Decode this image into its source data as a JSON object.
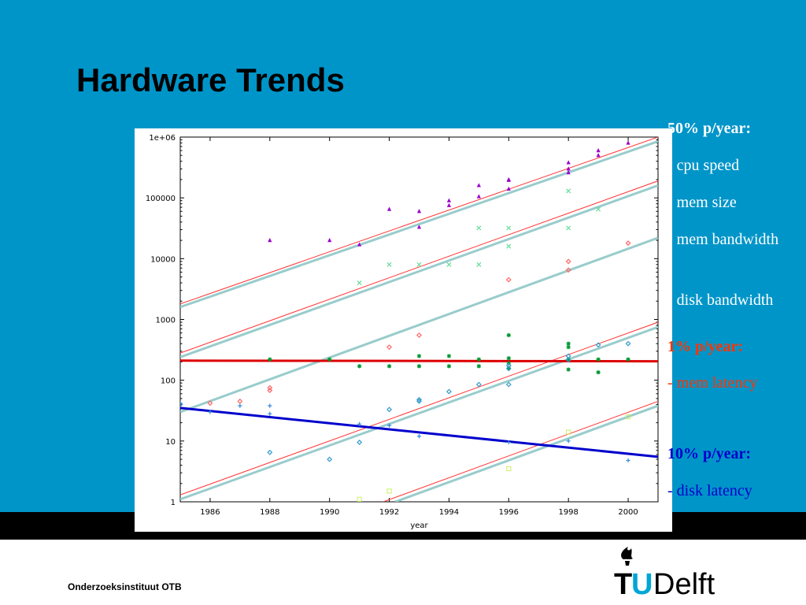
{
  "slide": {
    "title": "Hardware Trends",
    "organization": "Onderzoeksinstituut OTB",
    "logo_text": "TUDelft",
    "colors": {
      "background": "#0095c9",
      "band": "#000000",
      "footer": "#ffffff"
    }
  },
  "notes": [
    {
      "text": "50% p/year:",
      "bold": true,
      "color": "#ffffff",
      "top": 0
    },
    {
      "text": "- cpu speed",
      "bold": false,
      "color": "#ffffff",
      "top": 47
    },
    {
      "text": "- mem size",
      "bold": false,
      "color": "#ffffff",
      "top": 94
    },
    {
      "text": "- mem bandwidth",
      "bold": false,
      "color": "#ffffff",
      "top": 141
    },
    {
      "text": "- disk bandwidth",
      "bold": false,
      "color": "#ffffff",
      "top": 218
    },
    {
      "text": "1% p/year:",
      "bold": true,
      "color": "#ff3300",
      "top": 277
    },
    {
      "text": "- mem latency",
      "bold": false,
      "color": "#ff3300",
      "top": 323
    },
    {
      "text": "10% p/year:",
      "bold": true,
      "color": "#0000cc",
      "top": 413
    },
    {
      "text": "- disk latency",
      "bold": false,
      "color": "#0000cc",
      "top": 460
    }
  ],
  "chart_data": {
    "type": "scatter",
    "xlabel": "year",
    "ylabel": "",
    "xlim": [
      1985,
      2001
    ],
    "ylim": [
      1,
      1000000
    ],
    "yscale": "log",
    "x_ticks": [
      1986,
      1988,
      1990,
      1992,
      1994,
      1996,
      1998,
      2000
    ],
    "y_ticks": [
      {
        "value": 1,
        "label": "1"
      },
      {
        "value": 10,
        "label": "10"
      },
      {
        "value": 100,
        "label": "100"
      },
      {
        "value": 1000,
        "label": "1000"
      },
      {
        "value": 10000,
        "label": "10000"
      },
      {
        "value": 100000,
        "label": "100000"
      },
      {
        "value": 1000000,
        "label": "1e+06"
      }
    ],
    "series": [
      {
        "marker": "triangle",
        "color": "#9900cc",
        "points": [
          [
            1988,
            20000
          ],
          [
            1990,
            20000
          ],
          [
            1991,
            17000
          ],
          [
            1992,
            65000
          ],
          [
            1993,
            60000
          ],
          [
            1993,
            33000
          ],
          [
            1994,
            90000
          ],
          [
            1994,
            75000
          ],
          [
            1995,
            160000
          ],
          [
            1995,
            105000
          ],
          [
            1996,
            200000
          ],
          [
            1996,
            195000
          ],
          [
            1996,
            140000
          ],
          [
            1998,
            380000
          ],
          [
            1998,
            300000
          ],
          [
            1998,
            260000
          ],
          [
            1999,
            600000
          ],
          [
            1999,
            500000
          ],
          [
            2000,
            800000
          ]
        ]
      },
      {
        "marker": "x",
        "color": "#66dd99",
        "points": [
          [
            1991,
            4000
          ],
          [
            1992,
            8000
          ],
          [
            1993,
            8000
          ],
          [
            1994,
            8000
          ],
          [
            1995,
            32000
          ],
          [
            1995,
            8000
          ],
          [
            1996,
            32000
          ],
          [
            1996,
            16000
          ],
          [
            1998,
            130000
          ],
          [
            1998,
            32000
          ],
          [
            1999,
            65000
          ]
        ]
      },
      {
        "marker": "diamond",
        "color": "#ff6666",
        "points": [
          [
            1985,
            40
          ],
          [
            1986,
            42
          ],
          [
            1987,
            45
          ],
          [
            1988,
            75
          ],
          [
            1988,
            68
          ],
          [
            1992,
            350
          ],
          [
            1993,
            550
          ],
          [
            1996,
            4500
          ],
          [
            1998,
            9000
          ],
          [
            1998,
            6500
          ],
          [
            2000,
            18000
          ]
        ]
      },
      {
        "marker": "star",
        "color": "#009933",
        "points": [
          [
            1988,
            220
          ],
          [
            1990,
            220
          ],
          [
            1991,
            170
          ],
          [
            1992,
            170
          ],
          [
            1993,
            250
          ],
          [
            1993,
            170
          ],
          [
            1994,
            250
          ],
          [
            1994,
            170
          ],
          [
            1995,
            220
          ],
          [
            1995,
            170
          ],
          [
            1996,
            550
          ],
          [
            1996,
            230
          ],
          [
            1996,
            190
          ],
          [
            1996,
            160
          ],
          [
            1998,
            400
          ],
          [
            1998,
            350
          ],
          [
            1998,
            220
          ],
          [
            1998,
            150
          ],
          [
            1999,
            220
          ],
          [
            1999,
            135
          ],
          [
            2000,
            220
          ]
        ]
      },
      {
        "marker": "diamond-small",
        "color": "#3399cc",
        "points": [
          [
            1985,
            40
          ],
          [
            1988,
            6.5
          ],
          [
            1990,
            5
          ],
          [
            1991,
            9.5
          ],
          [
            1992,
            33
          ],
          [
            1993,
            48
          ],
          [
            1993,
            45
          ],
          [
            1994,
            65
          ],
          [
            1995,
            85
          ],
          [
            1996,
            85
          ],
          [
            1996,
            175
          ],
          [
            1996,
            155
          ],
          [
            1998,
            250
          ],
          [
            1998,
            215
          ],
          [
            1999,
            380
          ],
          [
            2000,
            400
          ]
        ]
      },
      {
        "marker": "plus",
        "color": "#3388dd",
        "points": [
          [
            1985,
            42
          ],
          [
            1986,
            30
          ],
          [
            1987,
            38
          ],
          [
            1988,
            38
          ],
          [
            1988,
            28
          ],
          [
            1991,
            19
          ],
          [
            1992,
            18
          ],
          [
            1993,
            12
          ],
          [
            1996,
            9.5
          ],
          [
            1998,
            10
          ],
          [
            2000,
            4.8
          ]
        ]
      },
      {
        "marker": "square",
        "color": "#ccee66",
        "points": [
          [
            1991,
            1.1
          ],
          [
            1992,
            1.5
          ],
          [
            1996,
            3.5
          ],
          [
            1998,
            14
          ],
          [
            2000,
            25
          ]
        ]
      }
    ],
    "trend_lines": [
      {
        "start": [
          1985,
          1800
        ],
        "end": [
          2001,
          1000000
        ],
        "color": "#ff3333",
        "width": 1
      },
      {
        "start": [
          1985,
          1600
        ],
        "end": [
          2001,
          850000
        ],
        "color": "#99cccc",
        "width": 3
      },
      {
        "start": [
          1985,
          280
        ],
        "end": [
          2001,
          190000
        ],
        "color": "#ff3333",
        "width": 1
      },
      {
        "start": [
          1985,
          240
        ],
        "end": [
          2001,
          160000
        ],
        "color": "#99cccc",
        "width": 3
      },
      {
        "start": [
          1985,
          30
        ],
        "end": [
          2001,
          22000
        ],
        "color": "#99cccc",
        "width": 3
      },
      {
        "start": [
          1985,
          1.3
        ],
        "end": [
          2001,
          900
        ],
        "color": "#ff3333",
        "width": 1
      },
      {
        "start": [
          1985,
          1.1
        ],
        "end": [
          2001,
          750
        ],
        "color": "#99cccc",
        "width": 3
      },
      {
        "start": [
          1991.8,
          1
        ],
        "end": [
          2001,
          45
        ],
        "color": "#ff3333",
        "width": 1
      },
      {
        "start": [
          1992.2,
          1
        ],
        "end": [
          2001,
          38
        ],
        "color": "#99cccc",
        "width": 3
      },
      {
        "start": [
          1985,
          210
        ],
        "end": [
          2001,
          205
        ],
        "color": "#dd0000",
        "width": 3
      },
      {
        "start": [
          1985,
          35
        ],
        "end": [
          2001,
          5.5
        ],
        "color": "#0000cc",
        "width": 3
      }
    ]
  }
}
